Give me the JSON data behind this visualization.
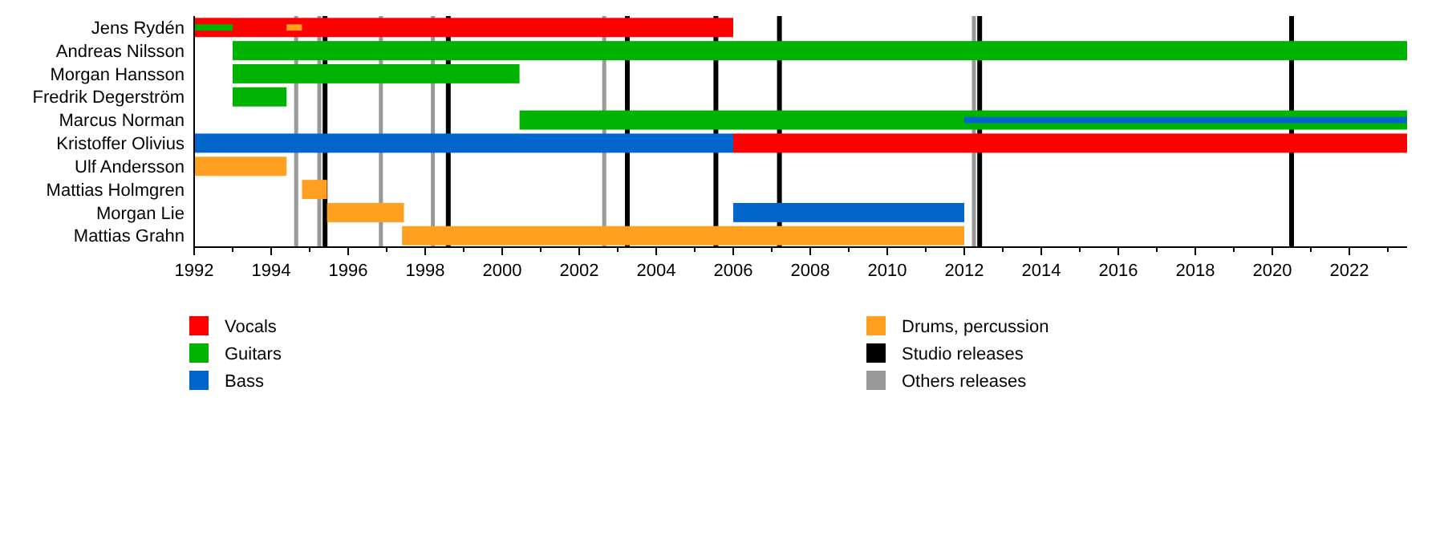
{
  "chart_data": {
    "type": "bar",
    "orientation": "horizontal",
    "categories": [
      "Jens Rydén",
      "Andreas Nilsson",
      "Morgan Hansson",
      "Fredrik Degerström",
      "Marcus Norman",
      "Kristoffer Olivius",
      "Ulf Andersson",
      "Mattias Holmgren",
      "Morgan Lie",
      "Mattias Grahn"
    ],
    "series": [
      {
        "name": "Vocals",
        "color": "#ff0000",
        "base": [
          1992,
          null,
          null,
          null,
          null,
          2006,
          null,
          null,
          null,
          null
        ],
        "values": [
          14,
          null,
          null,
          null,
          null,
          17.5,
          null,
          null,
          null,
          null
        ]
      },
      {
        "name": "Guitars",
        "color": "#00b300",
        "base": [
          1992,
          1993,
          1993,
          1993,
          2000.45,
          null,
          null,
          null,
          null,
          null
        ],
        "values": [
          1,
          30.5,
          7.45,
          1.4,
          23.05,
          null,
          null,
          null,
          null,
          null
        ]
      },
      {
        "name": "Bass",
        "color": "#0066cc",
        "base": [
          null,
          null,
          null,
          null,
          2012,
          1992,
          null,
          null,
          2006,
          null
        ],
        "values": [
          null,
          null,
          null,
          null,
          11.5,
          14,
          null,
          null,
          6,
          null
        ]
      },
      {
        "name": "Drums, percussion",
        "color": "#ffa020",
        "base": [
          1994.4,
          null,
          null,
          null,
          null,
          null,
          1992,
          1994.8,
          1995.45,
          1997.4
        ],
        "values": [
          0.4,
          null,
          null,
          null,
          null,
          null,
          2.4,
          0.65,
          2,
          14.6
        ]
      }
    ],
    "xlim": [
      1992,
      2023.5
    ],
    "xticks": [
      1992,
      {
        "value": 1993,
        "label": null
      },
      1994,
      {
        "value": 1995,
        "label": null
      },
      1996,
      {
        "value": 1997,
        "label": null
      },
      1998,
      {
        "value": 1999,
        "label": null
      },
      2000,
      {
        "value": 2001,
        "label": null
      },
      2002,
      {
        "value": 2003,
        "label": null
      },
      2004,
      {
        "value": 2005,
        "label": null
      },
      2006,
      {
        "value": 2007,
        "label": null
      },
      2008,
      {
        "value": 2009,
        "label": null
      },
      2010,
      {
        "value": 2011,
        "label": null
      },
      2012,
      {
        "value": 2013,
        "label": null
      },
      2014,
      {
        "value": 2015,
        "label": null
      },
      2016,
      {
        "value": 2017,
        "label": null
      },
      2018,
      {
        "value": 2019,
        "label": null
      },
      2020,
      {
        "value": 2021,
        "label": null
      },
      2022,
      {
        "value": 2023,
        "label": null
      }
    ],
    "ref_lines": [
      {
        "axis": "x",
        "value": 1995.4,
        "label": "Studio releases",
        "color": "#000000"
      },
      {
        "axis": "x",
        "value": 1998.6,
        "color": "#000000"
      },
      {
        "axis": "x",
        "value": 2003.25,
        "color": "#000000"
      },
      {
        "axis": "x",
        "value": 2005.55,
        "color": "#000000"
      },
      {
        "axis": "x",
        "value": 2007.2,
        "color": "#000000"
      },
      {
        "axis": "x",
        "value": 2012.4,
        "color": "#000000"
      },
      {
        "axis": "x",
        "value": 2020.5,
        "color": "#000000"
      },
      {
        "axis": "x",
        "value": 1994.65,
        "label": "Others releases",
        "color": "#999999"
      },
      {
        "axis": "x",
        "value": 1995.25,
        "color": "#999999"
      },
      {
        "axis": "x",
        "value": 1996.85,
        "color": "#999999"
      },
      {
        "axis": "x",
        "value": 1998.2,
        "color": "#999999"
      },
      {
        "axis": "x",
        "value": 2002.65,
        "color": "#999999"
      },
      {
        "axis": "x",
        "value": 2012.25,
        "color": "#999999"
      }
    ],
    "legend": "bottom"
  }
}
